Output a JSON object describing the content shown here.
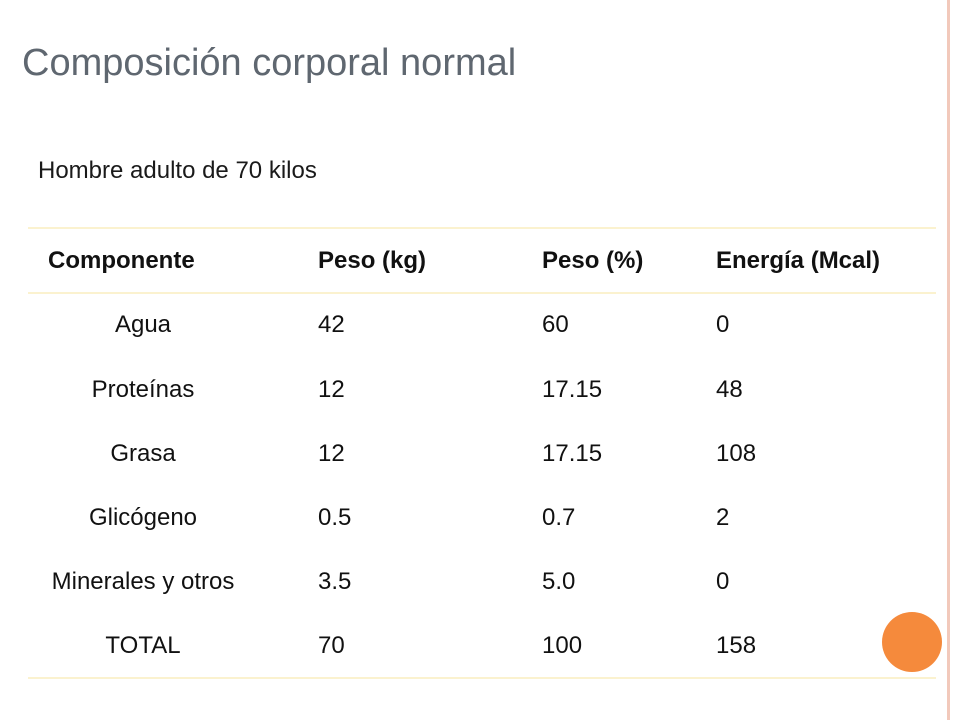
{
  "slide": {
    "title": "Composición corporal normal",
    "subtitle": "Hombre adulto de 70 kilos"
  },
  "table": {
    "headers": [
      "Componente",
      "Peso (kg)",
      "Peso (%)",
      "Energía (Mcal)"
    ],
    "rows": [
      [
        "Agua",
        "42",
        "60",
        "0"
      ],
      [
        "Proteínas",
        "12",
        "17.15",
        "48"
      ],
      [
        "Grasa",
        "12",
        "17.15",
        "108"
      ],
      [
        "Glicógeno",
        "0.5",
        "0.7",
        "2"
      ],
      [
        "Minerales y otros",
        "3.5",
        "5.0",
        "0"
      ],
      [
        "TOTAL",
        "70",
        "100",
        "158"
      ]
    ]
  },
  "colors": {
    "title": "#5f6770",
    "accent_dot": "#f58a3c",
    "rule": "#fbf2cf",
    "side_border": "#f2c9bb"
  }
}
